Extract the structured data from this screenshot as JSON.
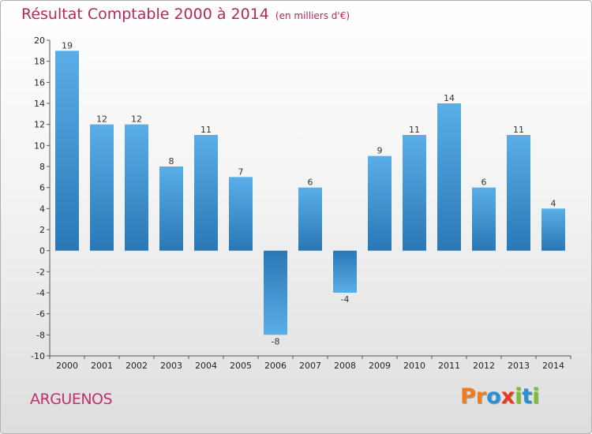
{
  "header": {
    "title": "Résultat Comptable 2000 à 2014",
    "subtitle": "(en milliers d'€)"
  },
  "footer": {
    "commune": "ARGUENOS",
    "logo_letters": [
      {
        "ch": "P",
        "color": "#f07c1e"
      },
      {
        "ch": "r",
        "color": "#f07c1e"
      },
      {
        "ch": "o",
        "color": "#2b8fd6"
      },
      {
        "ch": "x",
        "color": "#e8391e"
      },
      {
        "ch": "i",
        "color": "#7bbf2a"
      },
      {
        "ch": "t",
        "color": "#2b8fd6"
      },
      {
        "ch": "i",
        "color": "#7bbf2a"
      }
    ]
  },
  "chart_data": {
    "type": "bar",
    "title": "Résultat Comptable 2000 à 2014",
    "subtitle": "(en milliers d'€)",
    "categories": [
      "2000",
      "2001",
      "2002",
      "2003",
      "2004",
      "2005",
      "2006",
      "2007",
      "2008",
      "2009",
      "2010",
      "2011",
      "2012",
      "2013",
      "2014"
    ],
    "values": [
      19,
      12,
      12,
      8,
      11,
      7,
      -8,
      6,
      -4,
      9,
      11,
      14,
      6,
      11,
      4
    ],
    "ylim": [
      -10,
      20
    ],
    "yticks": [
      -10,
      -8,
      -6,
      -4,
      -2,
      0,
      2,
      4,
      6,
      8,
      10,
      12,
      14,
      16,
      18,
      20
    ],
    "grid": false,
    "colors": {
      "bar_light": "#5aaee8",
      "bar_dark": "#2a77b5",
      "axis": "#555555"
    }
  }
}
